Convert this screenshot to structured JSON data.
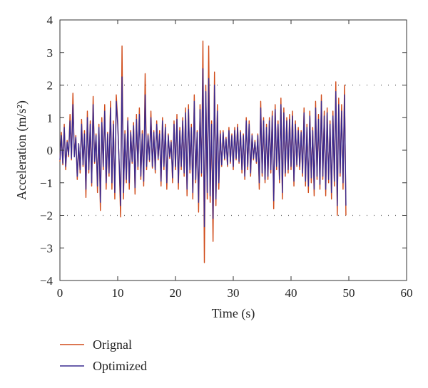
{
  "chart_data": {
    "type": "line",
    "xlabel": "Time (s)",
    "ylabel": "Acceleration (m/s²)",
    "xlim": [
      0,
      60
    ],
    "ylim": [
      -4,
      4
    ],
    "x_ticks": [
      "0",
      "10",
      "20",
      "30",
      "40",
      "50",
      "60"
    ],
    "y_ticks": [
      "4",
      "3",
      "2",
      "1",
      "0",
      "−1",
      "−2",
      "−3",
      "−4"
    ],
    "grid": false,
    "reference_lines": [
      {
        "y": 2,
        "style": "dotted"
      },
      {
        "y": -2,
        "style": "dotted"
      }
    ],
    "legend_position": "below-left",
    "x_step": 0.25,
    "series": [
      {
        "name": "Orignal",
        "color": "#d04a18",
        "values": [
          -0.35,
          0.55,
          -0.45,
          0.8,
          -0.6,
          0.3,
          -0.2,
          1.1,
          -0.3,
          1.75,
          -0.2,
          0.45,
          -0.9,
          0.2,
          -0.7,
          0.95,
          -0.5,
          0.6,
          -1.45,
          1.2,
          -0.7,
          0.9,
          -1.1,
          1.65,
          -0.4,
          0.5,
          -1.3,
          0.8,
          -1.85,
          1.0,
          -0.6,
          1.4,
          -1.2,
          0.55,
          -0.8,
          1.5,
          -1.2,
          0.9,
          -1.5,
          1.7,
          0.9,
          -0.4,
          -2.05,
          3.2,
          -1.5,
          0.6,
          -1.0,
          1.0,
          -1.2,
          0.6,
          -0.4,
          0.85,
          -1.35,
          1.1,
          -0.6,
          1.3,
          -0.9,
          0.6,
          -1.1,
          2.35,
          -0.6,
          0.5,
          -0.35,
          1.2,
          -0.55,
          0.6,
          -0.7,
          0.9,
          -0.3,
          0.6,
          -1.1,
          1.0,
          -0.6,
          0.8,
          -1.2,
          0.5,
          -0.25,
          0.3,
          -1.0,
          0.9,
          -0.6,
          1.1,
          -1.2,
          0.7,
          -0.6,
          1.0,
          -0.8,
          1.3,
          -1.4,
          1.4,
          -0.7,
          0.8,
          -1.5,
          1.7,
          -1.0,
          0.6,
          -1.9,
          1.4,
          -0.8,
          3.35,
          -3.45,
          2.0,
          -1.5,
          3.2,
          -1.6,
          0.9,
          -2.8,
          2.4,
          -1.7,
          1.4,
          -1.2,
          0.6,
          -0.5,
          0.6,
          -0.3,
          0.4,
          -0.5,
          0.7,
          -0.4,
          0.5,
          -0.6,
          0.7,
          -0.3,
          0.8,
          -0.4,
          0.6,
          -0.7,
          0.5,
          -0.9,
          1.0,
          -0.6,
          0.9,
          -0.8,
          0.5,
          -0.3,
          0.3,
          -0.4,
          0.5,
          -1.2,
          1.5,
          -0.8,
          1.0,
          -1.0,
          0.8,
          -0.9,
          1.0,
          -0.7,
          1.2,
          -1.8,
          1.4,
          -0.6,
          0.9,
          -1.0,
          1.6,
          -1.5,
          1.3,
          -0.8,
          1.0,
          -0.7,
          1.1,
          -0.6,
          1.2,
          -1.1,
          0.9,
          -0.5,
          0.7,
          -0.6,
          0.6,
          -0.8,
          1.3,
          -1.1,
          0.8,
          -1.3,
          1.2,
          -1.0,
          0.7,
          -1.4,
          1.5,
          -0.9,
          1.1,
          -1.2,
          1.7,
          -0.9,
          1.2,
          -1.4,
          1.3,
          -1.0,
          0.9,
          -1.5,
          1.2,
          -1.1,
          2.1,
          -2.0,
          1.6,
          -0.8,
          1.4,
          -1.2,
          2.0,
          -2.0
        ]
      },
      {
        "name": "Optimized",
        "color": "#3a2a8f",
        "values": [
          -0.3,
          0.45,
          -0.4,
          0.7,
          -0.5,
          0.25,
          -0.15,
          0.9,
          -0.25,
          1.4,
          -0.2,
          0.4,
          -0.8,
          0.2,
          -0.6,
          0.8,
          -0.45,
          0.5,
          -1.2,
          1.0,
          -0.6,
          0.8,
          -1.0,
          1.4,
          -0.35,
          0.45,
          -1.1,
          0.7,
          -1.6,
          0.85,
          -0.5,
          1.2,
          -1.0,
          0.5,
          -0.7,
          1.3,
          -1.0,
          0.8,
          -1.3,
          1.5,
          0.8,
          -0.35,
          -1.7,
          2.25,
          -1.3,
          0.5,
          -0.9,
          0.9,
          -1.0,
          0.55,
          -0.35,
          0.75,
          -1.15,
          0.95,
          -0.5,
          1.1,
          -0.8,
          0.5,
          -0.95,
          1.7,
          -0.5,
          0.45,
          -0.3,
          1.0,
          -0.5,
          0.55,
          -0.6,
          0.8,
          -0.25,
          0.5,
          -0.95,
          0.9,
          -0.5,
          0.7,
          -1.0,
          0.45,
          -0.2,
          0.25,
          -0.85,
          0.8,
          -0.5,
          0.95,
          -1.0,
          0.6,
          -0.5,
          0.9,
          -0.7,
          1.15,
          -1.2,
          1.25,
          -0.6,
          0.7,
          -1.3,
          1.5,
          -0.9,
          0.55,
          -1.6,
          1.25,
          -0.7,
          2.5,
          -2.35,
          1.8,
          -1.3,
          2.2,
          -1.4,
          0.8,
          -2.1,
          2.0,
          -1.5,
          1.2,
          -1.0,
          0.5,
          -0.45,
          0.55,
          -0.25,
          0.35,
          -0.45,
          0.6,
          -0.35,
          0.45,
          -0.5,
          0.6,
          -0.25,
          0.7,
          -0.35,
          0.55,
          -0.6,
          0.45,
          -0.8,
          0.9,
          -0.5,
          0.8,
          -0.7,
          0.45,
          -0.25,
          0.25,
          -0.35,
          0.45,
          -1.0,
          1.3,
          -0.7,
          0.9,
          -0.9,
          0.7,
          -0.8,
          0.9,
          -0.6,
          1.05,
          -1.55,
          1.25,
          -0.5,
          0.8,
          -0.9,
          1.4,
          -1.3,
          1.15,
          -0.7,
          0.9,
          -0.6,
          0.95,
          -0.5,
          1.05,
          -0.95,
          0.8,
          -0.45,
          0.6,
          -0.5,
          0.55,
          -0.7,
          1.15,
          -0.95,
          0.7,
          -1.1,
          1.05,
          -0.85,
          0.6,
          -1.2,
          1.3,
          -0.8,
          0.95,
          -1.05,
          1.5,
          -0.8,
          1.05,
          -1.2,
          1.15,
          -0.9,
          0.8,
          -1.3,
          1.05,
          -0.95,
          1.8,
          -1.7,
          1.4,
          -0.7,
          1.2,
          -1.0,
          1.7,
          -1.7
        ]
      }
    ]
  }
}
